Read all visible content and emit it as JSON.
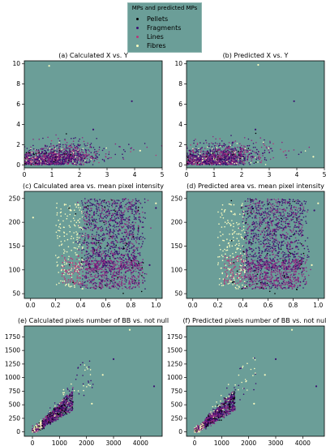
{
  "legend": {
    "title": "MPs and predicted MPs",
    "placement": "top-center",
    "entries": [
      {
        "label": "Pellets",
        "color": "#000004"
      },
      {
        "label": "Fragments",
        "color": "#3b0f70"
      },
      {
        "label": "Lines",
        "color": "#b5367a"
      },
      {
        "label": "Fibres",
        "color": "#fcfdbf"
      }
    ]
  },
  "colors": {
    "plot_bg": "#6b9e98",
    "fragments_alt": "#8c2981",
    "lines": "#b5367a"
  },
  "chart_data": [
    {
      "type": "scatter",
      "title": "(a) Calculated X vs. Y",
      "xlim": [
        0,
        5
      ],
      "ylim": [
        -0.3,
        10.3
      ],
      "xticks": [
        0,
        1,
        2,
        3,
        4,
        5
      ],
      "yticks": [
        0,
        2,
        4,
        6,
        8,
        10
      ],
      "distribution": {
        "x_center": 1.1,
        "y_center": 0.8,
        "x_spread": 0.75,
        "y_spread": 0.6,
        "x_max": 5,
        "y_max": 10
      },
      "outliers": [
        [
          0.9,
          9.8
        ],
        [
          3.9,
          6.3
        ],
        [
          4.2,
          1.4
        ],
        [
          2.5,
          3.5
        ]
      ]
    },
    {
      "type": "scatter",
      "title": "(b) Predicted X vs. Y",
      "xlim": [
        0,
        5
      ],
      "ylim": [
        -0.3,
        10.3
      ],
      "xticks": [
        0,
        1,
        2,
        3,
        4,
        5
      ],
      "yticks": [
        0,
        2,
        4,
        6,
        8,
        10
      ],
      "distribution": {
        "x_center": 1.1,
        "y_center": 0.8,
        "x_spread": 0.75,
        "y_spread": 0.6,
        "x_max": 5,
        "y_max": 10
      },
      "outliers": [
        [
          2.6,
          9.9
        ],
        [
          3.9,
          6.3
        ],
        [
          4.6,
          0.8
        ],
        [
          2.5,
          3.5
        ]
      ]
    },
    {
      "type": "scatter",
      "title": "(c) Calculated area vs. mean pixel intensity",
      "xlim": [
        -0.05,
        1.05
      ],
      "ylim": [
        40,
        265
      ],
      "xticks": [
        0.0,
        0.2,
        0.4,
        0.6,
        0.8,
        1.0
      ],
      "xtick_labels": [
        "0.0",
        "0.2",
        "0.4",
        "0.6",
        "0.8",
        "1.0"
      ],
      "yticks": [
        50,
        100,
        150,
        200,
        250
      ],
      "distribution": {
        "cluster_x": [
          0.42,
          0.88
        ],
        "fibres_x": [
          0.2,
          0.42
        ],
        "lines_x": [
          0.25,
          0.4
        ],
        "y_range": [
          45,
          255
        ]
      },
      "outliers": [
        [
          1.0,
          240
        ],
        [
          1.0,
          230
        ],
        [
          0.02,
          210
        ],
        [
          0.95,
          110
        ]
      ]
    },
    {
      "type": "scatter",
      "title": "(d) Predicted area vs. mean pixel intensity",
      "xlim": [
        -0.05,
        1.05
      ],
      "ylim": [
        40,
        265
      ],
      "xticks": [
        0.0,
        0.2,
        0.4,
        0.6,
        0.8,
        1.0
      ],
      "xtick_labels": [
        "0.0",
        "0.2",
        "0.4",
        "0.6",
        "0.8",
        "1.0"
      ],
      "yticks": [
        50,
        100,
        150,
        200,
        250
      ],
      "distribution": {
        "cluster_x": [
          0.42,
          0.88
        ],
        "fibres_x": [
          0.2,
          0.42
        ],
        "lines_x": [
          0.25,
          0.4
        ],
        "y_range": [
          45,
          255
        ]
      },
      "outliers": [
        [
          1.0,
          240
        ],
        [
          0.97,
          225
        ],
        [
          0.95,
          110
        ]
      ]
    },
    {
      "type": "scatter",
      "title": "(e) Calculated pixels number of BB vs. not null",
      "xlim": [
        -300,
        4800
      ],
      "ylim": [
        -80,
        1950
      ],
      "xticks": [
        0,
        1000,
        2000,
        3000,
        4000
      ],
      "yticks": [
        0,
        250,
        500,
        750,
        1000,
        1250,
        1500,
        1750
      ],
      "distribution": {
        "slope": 0.45,
        "x_max": 1500
      },
      "outliers": [
        [
          3600,
          1880
        ],
        [
          4500,
          840
        ],
        [
          2600,
          1050
        ],
        [
          3000,
          1340
        ],
        [
          2200,
          520
        ]
      ]
    },
    {
      "type": "scatter",
      "title": "(f) Predicted pixels number of BB vs. not null",
      "xlim": [
        -300,
        4800
      ],
      "ylim": [
        -80,
        1950
      ],
      "xticks": [
        0,
        1000,
        2000,
        3000,
        4000
      ],
      "yticks": [
        0,
        250,
        500,
        750,
        1000,
        1250,
        1500,
        1750
      ],
      "distribution": {
        "slope": 0.45,
        "x_max": 1500
      },
      "outliers": [
        [
          3600,
          1880
        ],
        [
          4500,
          840
        ],
        [
          2600,
          1050
        ],
        [
          3000,
          1340
        ],
        [
          2200,
          520
        ]
      ]
    }
  ]
}
